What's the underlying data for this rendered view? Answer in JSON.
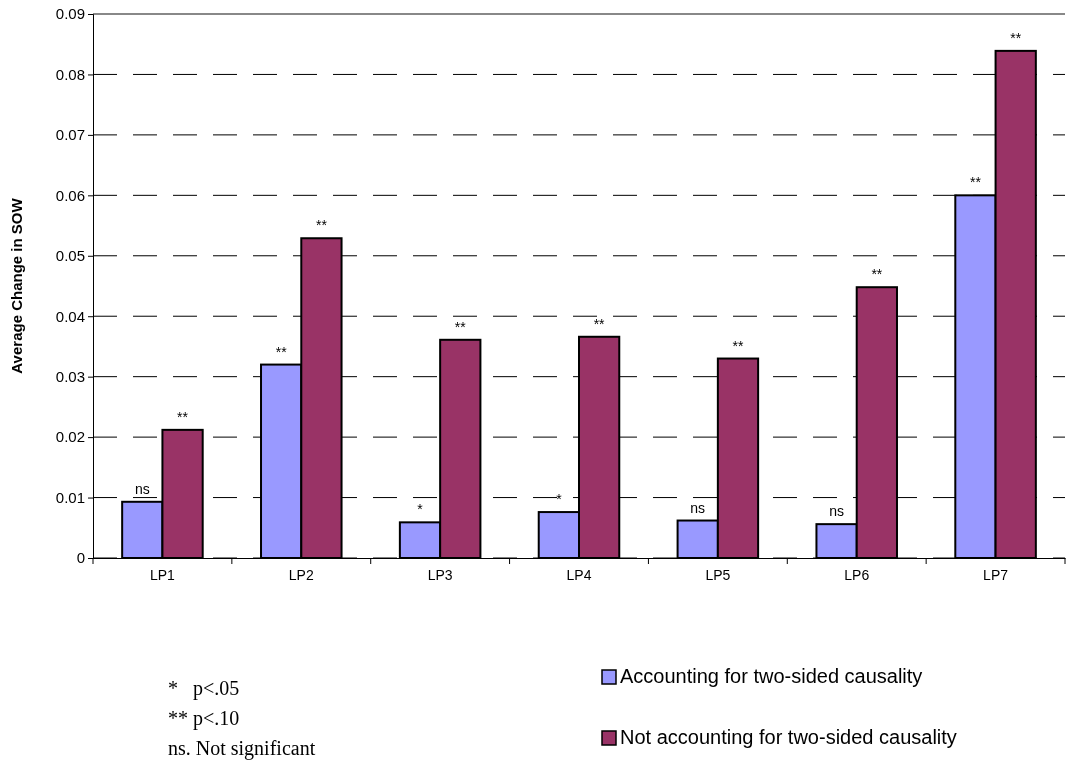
{
  "chart_data": {
    "type": "bar",
    "ylabel": "Average Change in SOW",
    "categories": [
      "LP1",
      "LP2",
      "LP3",
      "LP4",
      "LP5",
      "LP6",
      "LP7"
    ],
    "series": [
      {
        "name": "Accounting for two-sided causality",
        "color": "#9999ff",
        "values": [
          0.0093,
          0.032,
          0.0059,
          0.0076,
          0.0062,
          0.0056,
          0.06
        ],
        "value_labels": [
          "ns",
          "**",
          "*",
          "*",
          "ns",
          "ns",
          "**"
        ]
      },
      {
        "name": "Not accounting for two-sided causality",
        "color": "#993366",
        "values": [
          0.0212,
          0.0529,
          0.0361,
          0.0366,
          0.033,
          0.0448,
          0.0839
        ],
        "value_labels": [
          "**",
          "**",
          "**",
          "**",
          "**",
          "**",
          "**"
        ]
      }
    ],
    "ylim": [
      0,
      0.09
    ],
    "yticks": [
      0,
      0.01,
      0.02,
      0.03,
      0.04,
      0.05,
      0.06,
      0.07,
      0.08,
      0.09
    ],
    "grid": "y",
    "line_style": "dashed",
    "legend": "bottom right",
    "annotations": [
      "*   p<.05",
      "** p<.10",
      "ns. Not significant"
    ]
  }
}
